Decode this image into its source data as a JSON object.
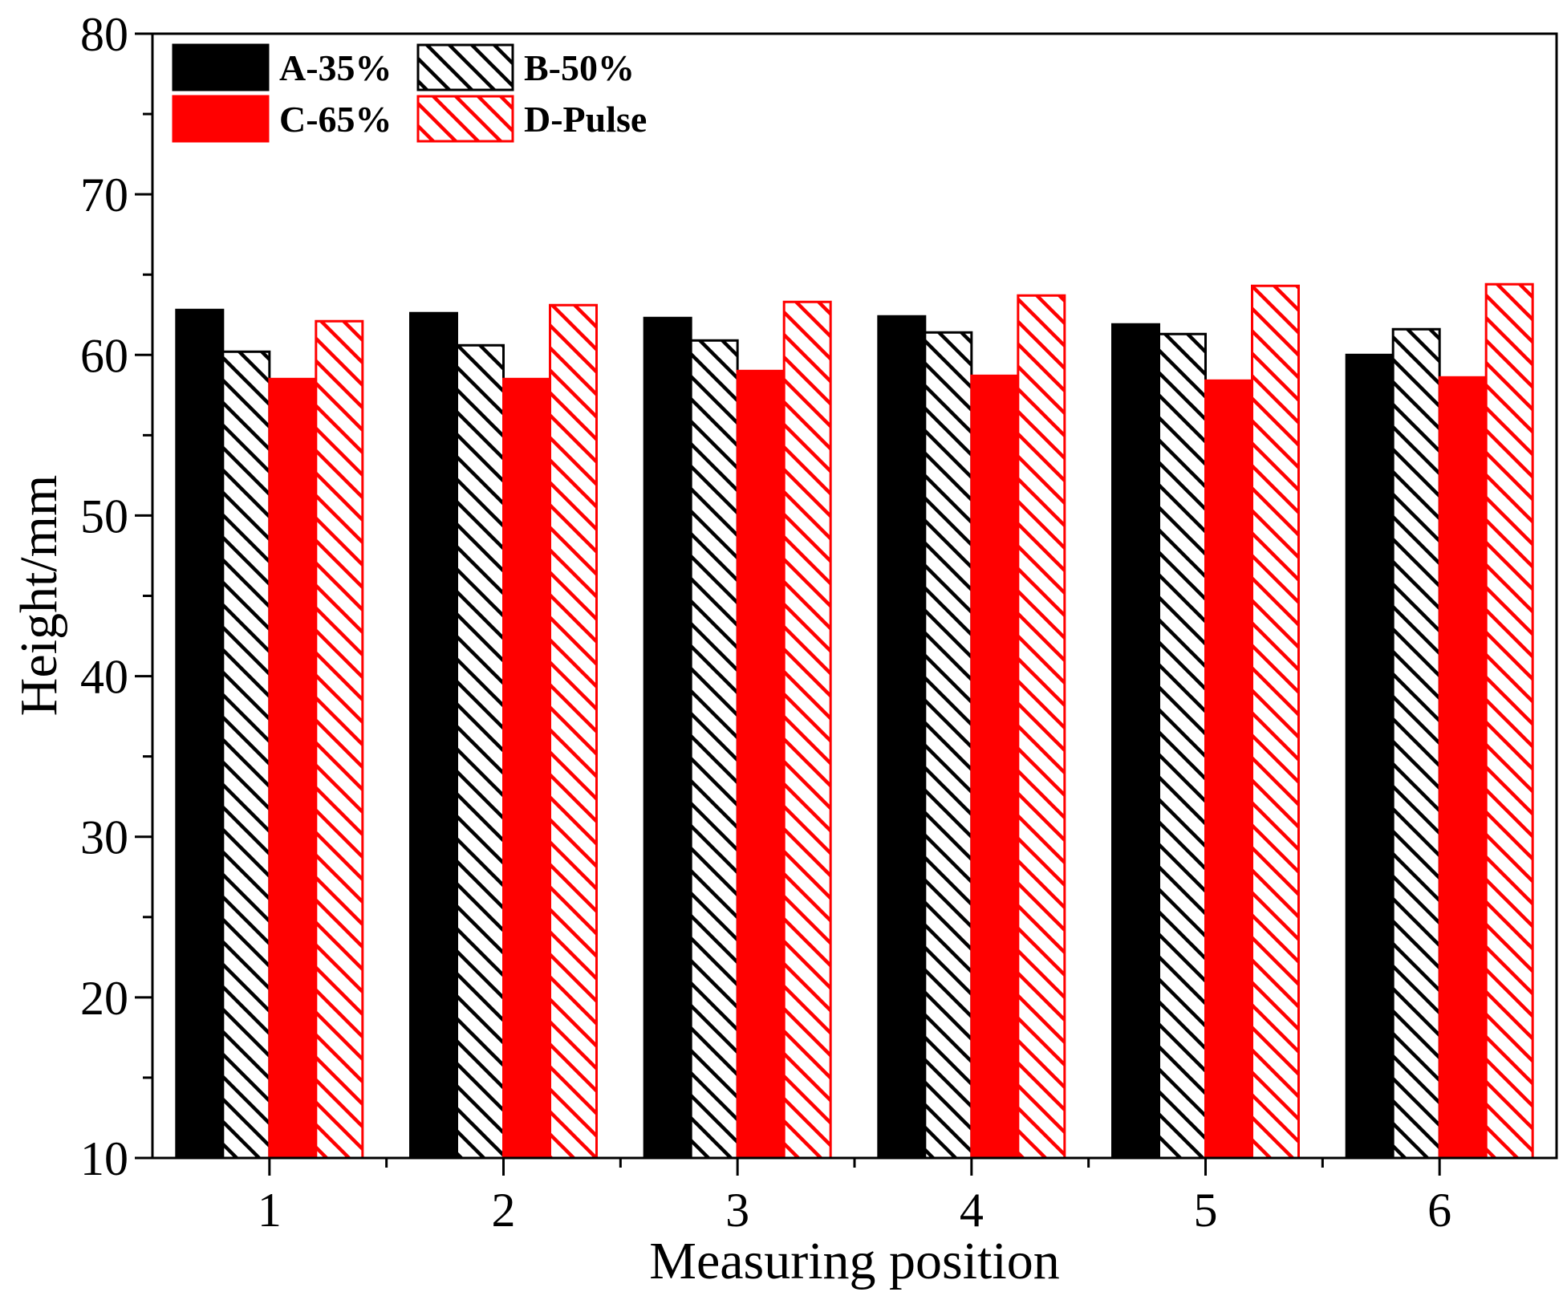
{
  "chart_data": {
    "type": "bar",
    "title": "",
    "xlabel": "Measuring position",
    "ylabel": "Height/mm",
    "ylim": [
      10,
      80
    ],
    "yticks": [
      10,
      20,
      30,
      40,
      50,
      60,
      70,
      80
    ],
    "categories": [
      "1",
      "2",
      "3",
      "4",
      "5",
      "6"
    ],
    "series": [
      {
        "name": "A-35%",
        "values": [
          62.8,
          62.6,
          62.3,
          62.4,
          61.9,
          60.0
        ],
        "color": "#000000",
        "fill": "solid"
      },
      {
        "name": "B-50%",
        "values": [
          60.2,
          60.6,
          60.9,
          61.4,
          61.3,
          61.6
        ],
        "color": "#000000",
        "fill": "hatch"
      },
      {
        "name": "C-65%",
        "values": [
          58.5,
          58.5,
          59.0,
          58.7,
          58.4,
          58.6
        ],
        "color": "#ff0000",
        "fill": "solid"
      },
      {
        "name": "D-Pulse",
        "values": [
          62.1,
          63.1,
          63.3,
          63.7,
          64.3,
          64.4
        ],
        "color": "#ff0000",
        "fill": "hatch"
      }
    ],
    "legend_position": "top-left"
  }
}
